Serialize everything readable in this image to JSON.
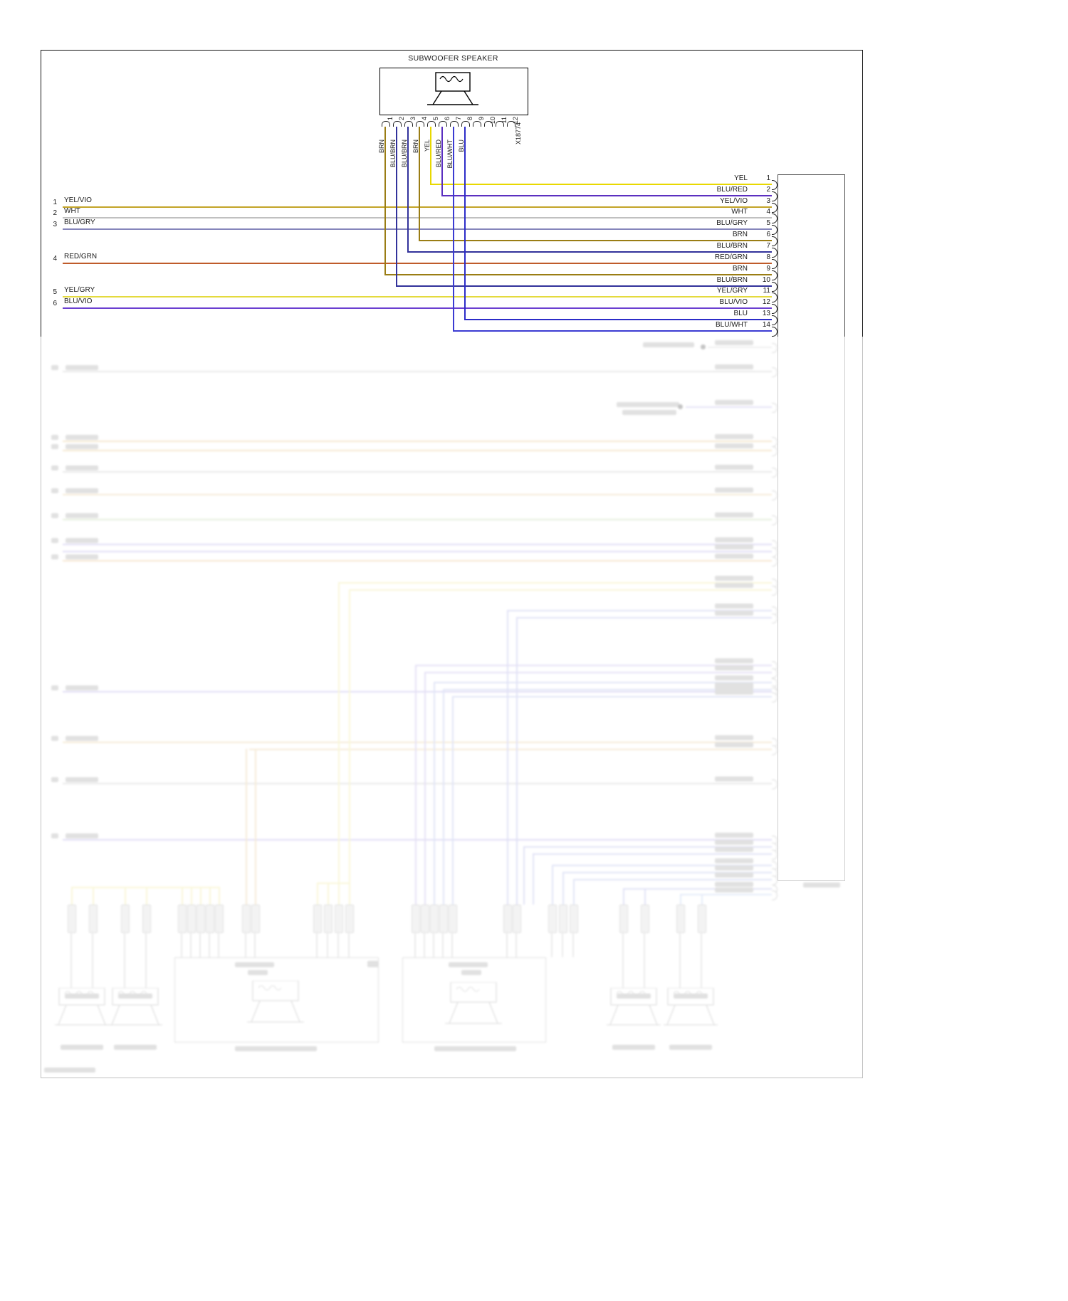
{
  "diagram": {
    "subwoofer": {
      "title": "SUBWOOFER SPEAKER",
      "connector_id": "X18774",
      "pin_numbers": [
        "1",
        "2",
        "3",
        "4",
        "5",
        "6",
        "7",
        "8",
        "9",
        "10",
        "11",
        "12"
      ],
      "wires": [
        {
          "pin": "1",
          "label": "BRN",
          "color": "#9a7d14",
          "to_pin": "9"
        },
        {
          "pin": "2",
          "label": "BLU/BRN",
          "color": "#32329b",
          "to_pin": "10"
        },
        {
          "pin": "3",
          "label": "BLU/BRN",
          "color": "#32329b",
          "to_pin": "7"
        },
        {
          "pin": "4",
          "label": "BRN",
          "color": "#9a7d14",
          "to_pin": "6"
        },
        {
          "pin": "5",
          "label": "YEL",
          "color": "#e8d800",
          "to_pin": "1"
        },
        {
          "pin": "6",
          "label": "BLU/RED",
          "color": "#5b2fc0",
          "to_pin": "2"
        },
        {
          "pin": "7",
          "label": "BLU/WHT",
          "color": "#3b3bd2",
          "to_pin": "14"
        },
        {
          "pin": "8",
          "label": "BLU",
          "color": "#2c2cc8",
          "to_pin": "13"
        }
      ]
    },
    "left_wires": [
      {
        "num": "1",
        "label": "YEL/VIO",
        "color": "#c3a428",
        "to_pin": "3"
      },
      {
        "num": "2",
        "label": "WHT",
        "color": "#c0c0c0",
        "to_pin": "4"
      },
      {
        "num": "3",
        "label": "BLU/GRY",
        "color": "#8585bb",
        "to_pin": "5"
      },
      {
        "num": "4",
        "label": "RED/GRN",
        "color": "#bf5b2a",
        "to_pin": "8"
      },
      {
        "num": "5",
        "label": "YEL/GRY",
        "color": "#e4da3e",
        "to_pin": "11"
      },
      {
        "num": "6",
        "label": "BLU/VIO",
        "color": "#6a3fd0",
        "to_pin": "12"
      }
    ],
    "right_connector": {
      "pins": [
        {
          "num": "1",
          "label": "YEL"
        },
        {
          "num": "2",
          "label": "BLU/RED"
        },
        {
          "num": "3",
          "label": "YEL/VIO"
        },
        {
          "num": "4",
          "label": "WHT"
        },
        {
          "num": "5",
          "label": "BLU/GRY"
        },
        {
          "num": "6",
          "label": "BRN"
        },
        {
          "num": "7",
          "label": "BLU/BRN"
        },
        {
          "num": "8",
          "label": "RED/GRN"
        },
        {
          "num": "9",
          "label": "BRN"
        },
        {
          "num": "10",
          "label": "BLU/BRN"
        },
        {
          "num": "11",
          "label": "YEL/GRY"
        },
        {
          "num": "12",
          "label": "BLU/VIO"
        },
        {
          "num": "13",
          "label": "BLU"
        },
        {
          "num": "14",
          "label": "BLU/WHT"
        }
      ]
    }
  }
}
